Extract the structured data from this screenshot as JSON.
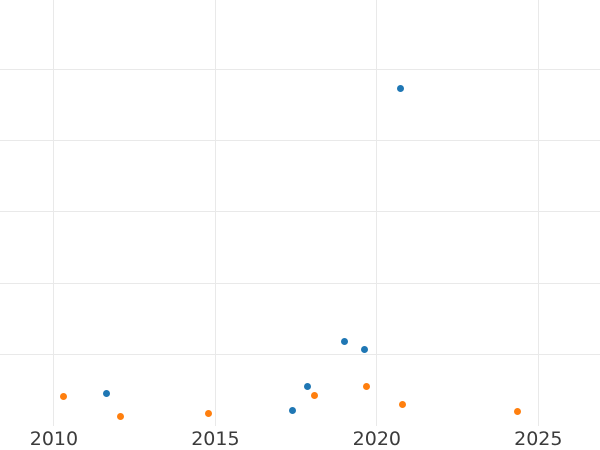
{
  "chart_data": {
    "type": "scatter",
    "title": "",
    "xlabel": "",
    "ylabel": "",
    "x_ticks": [
      2010,
      2015,
      2020,
      2025
    ],
    "x_tick_labels": [
      "2010",
      "2015",
      "2020",
      "2025"
    ],
    "xlim": [
      2008.33,
      2026.91
    ],
    "ylim": [
      0,
      5.97
    ],
    "y_gridline_values": [
      1,
      2,
      3,
      4,
      5
    ],
    "grid": true,
    "legend_position": "none",
    "y_axis_labels_visible": false,
    "series": [
      {
        "name": "blue",
        "color": "#1f77b4",
        "points": [
          [
            2011.64,
            0.45
          ],
          [
            2017.4,
            0.22
          ],
          [
            2017.86,
            0.55
          ],
          [
            2019.01,
            1.18
          ],
          [
            2019.63,
            1.07
          ],
          [
            2020.74,
            4.73
          ]
        ]
      },
      {
        "name": "orange",
        "color": "#ff7f0e",
        "points": [
          [
            2010.31,
            0.41
          ],
          [
            2012.07,
            0.13
          ],
          [
            2014.8,
            0.18
          ],
          [
            2018.08,
            0.43
          ],
          [
            2019.69,
            0.55
          ],
          [
            2020.8,
            0.3
          ],
          [
            2024.37,
            0.2
          ]
        ]
      }
    ]
  },
  "style": {
    "background": "#ffffff",
    "grid_color": "#e9e9e9",
    "tick_label_color": "#3b3b3b"
  }
}
